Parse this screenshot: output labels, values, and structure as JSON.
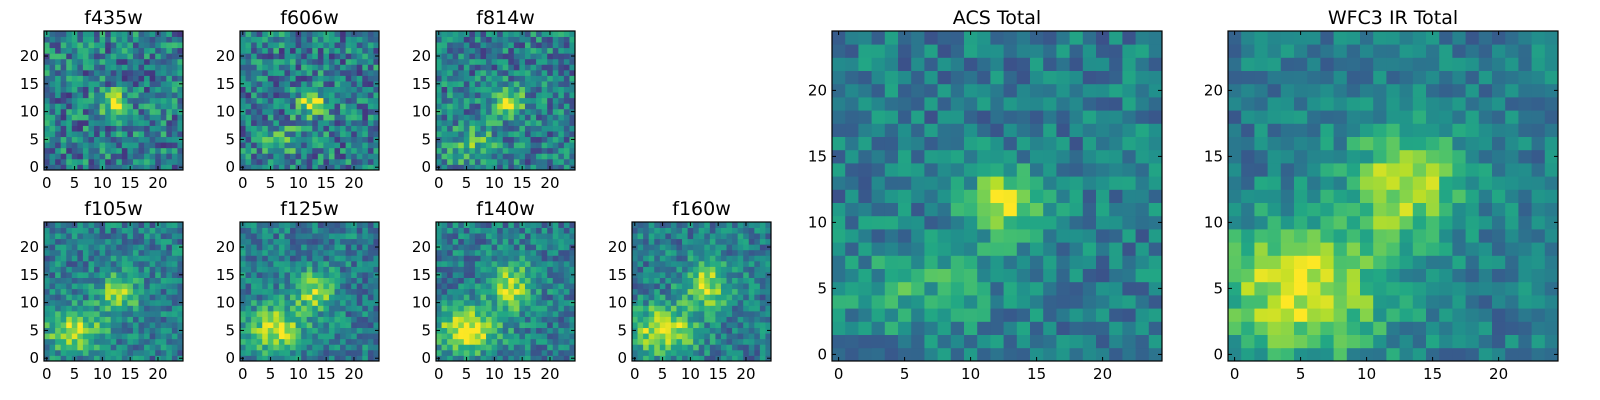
{
  "chart_data": [
    {
      "type": "heatmap",
      "title": "f435w",
      "size": 25,
      "xticks": [
        0,
        5,
        10,
        15,
        20
      ],
      "yticks": [
        0,
        5,
        10,
        15,
        20
      ],
      "colormap": "viridis",
      "noise": 0.55,
      "seed": 11,
      "blobs": [
        {
          "x": 12.5,
          "y": 11.5,
          "sx": 1.6,
          "sy": 1.6,
          "amp": 1.0
        }
      ]
    },
    {
      "type": "heatmap",
      "title": "f606w",
      "size": 25,
      "xticks": [
        0,
        5,
        10,
        15,
        20
      ],
      "yticks": [
        0,
        5,
        10,
        15,
        20
      ],
      "colormap": "viridis",
      "noise": 0.55,
      "seed": 23,
      "blobs": [
        {
          "x": 12.5,
          "y": 11.5,
          "sx": 1.8,
          "sy": 1.6,
          "amp": 1.0
        },
        {
          "x": 7,
          "y": 5,
          "sx": 3,
          "sy": 2,
          "amp": 0.35
        }
      ]
    },
    {
      "type": "heatmap",
      "title": "f814w",
      "size": 25,
      "xticks": [
        0,
        5,
        10,
        15,
        20
      ],
      "yticks": [
        0,
        5,
        10,
        15,
        20
      ],
      "colormap": "viridis",
      "noise": 0.5,
      "seed": 37,
      "blobs": [
        {
          "x": 12.5,
          "y": 11.5,
          "sx": 1.9,
          "sy": 1.8,
          "amp": 1.0
        },
        {
          "x": 6,
          "y": 4,
          "sx": 3,
          "sy": 2.5,
          "amp": 0.5
        }
      ]
    },
    {
      "type": "heatmap",
      "title": "f105w",
      "size": 25,
      "xticks": [
        0,
        5,
        10,
        15,
        20
      ],
      "yticks": [
        0,
        5,
        10,
        15,
        20
      ],
      "colormap": "viridis",
      "noise": 0.4,
      "seed": 41,
      "blobs": [
        {
          "x": 13,
          "y": 12,
          "sx": 2.5,
          "sy": 2.5,
          "amp": 0.8
        },
        {
          "x": 5,
          "y": 5,
          "sx": 3.5,
          "sy": 2.5,
          "amp": 0.9
        }
      ]
    },
    {
      "type": "heatmap",
      "title": "f125w",
      "size": 25,
      "xticks": [
        0,
        5,
        10,
        15,
        20
      ],
      "yticks": [
        0,
        5,
        10,
        15,
        20
      ],
      "colormap": "viridis",
      "noise": 0.4,
      "seed": 53,
      "blobs": [
        {
          "x": 13,
          "y": 12,
          "sx": 2.5,
          "sy": 2.5,
          "amp": 0.8
        },
        {
          "x": 6,
          "y": 5,
          "sx": 3.5,
          "sy": 3,
          "amp": 0.9
        }
      ]
    },
    {
      "type": "heatmap",
      "title": "f140w",
      "size": 25,
      "xticks": [
        0,
        5,
        10,
        15,
        20
      ],
      "yticks": [
        0,
        5,
        10,
        15,
        20
      ],
      "colormap": "viridis",
      "noise": 0.4,
      "seed": 67,
      "blobs": [
        {
          "x": 13,
          "y": 13,
          "sx": 2.8,
          "sy": 3,
          "amp": 0.85
        },
        {
          "x": 5,
          "y": 5,
          "sx": 4,
          "sy": 3,
          "amp": 0.95
        }
      ]
    },
    {
      "type": "heatmap",
      "title": "f160w",
      "size": 25,
      "xticks": [
        0,
        5,
        10,
        15,
        20
      ],
      "yticks": [
        0,
        5,
        10,
        15,
        20
      ],
      "colormap": "viridis",
      "noise": 0.4,
      "seed": 79,
      "blobs": [
        {
          "x": 13,
          "y": 13,
          "sx": 2.8,
          "sy": 3,
          "amp": 0.85
        },
        {
          "x": 5,
          "y": 5,
          "sx": 4,
          "sy": 3,
          "amp": 1.0
        }
      ]
    },
    {
      "type": "heatmap",
      "title": "ACS Total",
      "size": 25,
      "xticks": [
        0,
        5,
        10,
        15,
        20
      ],
      "yticks": [
        0,
        5,
        10,
        15,
        20
      ],
      "colormap": "viridis",
      "noise": 0.35,
      "seed": 97,
      "blobs": [
        {
          "x": 12.5,
          "y": 11.5,
          "sx": 1.9,
          "sy": 1.7,
          "amp": 1.0
        },
        {
          "x": 6,
          "y": 5,
          "sx": 4,
          "sy": 2.5,
          "amp": 0.35
        }
      ]
    },
    {
      "type": "heatmap",
      "title": "WFC3 IR Total",
      "size": 25,
      "xticks": [
        0,
        5,
        10,
        15,
        20
      ],
      "yticks": [
        0,
        5,
        10,
        15,
        20
      ],
      "colormap": "viridis",
      "noise": 0.3,
      "seed": 113,
      "blobs": [
        {
          "x": 13,
          "y": 13,
          "sx": 3,
          "sy": 3,
          "amp": 0.85
        },
        {
          "x": 5,
          "y": 5,
          "sx": 4.5,
          "sy": 3.5,
          "amp": 1.0
        }
      ]
    }
  ]
}
